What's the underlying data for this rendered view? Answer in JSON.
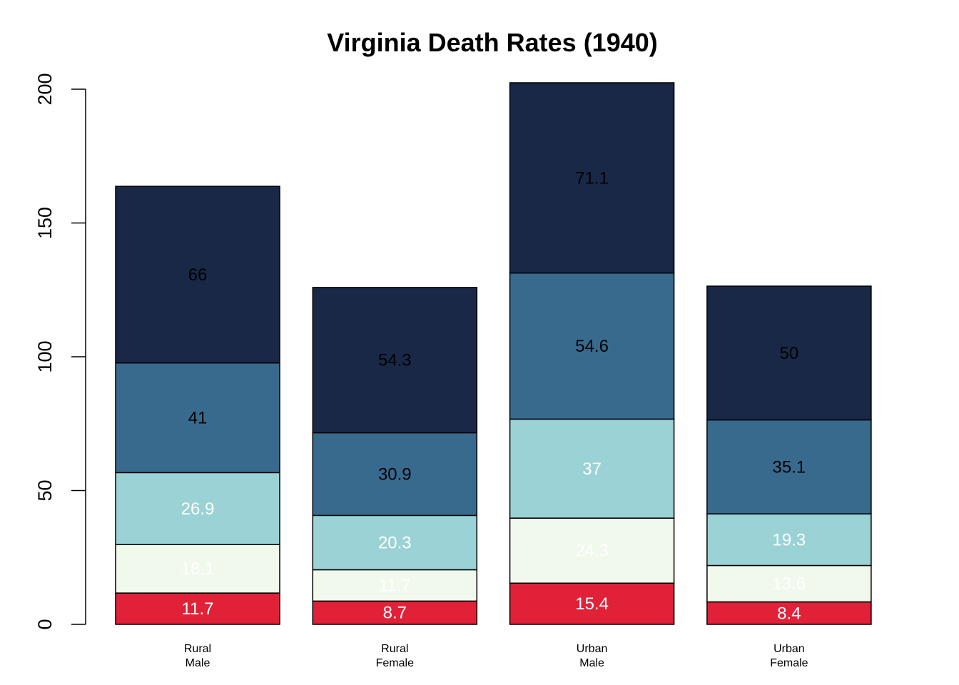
{
  "chart_data": {
    "type": "bar",
    "stacked": true,
    "title": "Virginia Death Rates (1940)",
    "xlabel": "",
    "ylabel": "",
    "ylim": [
      0,
      200
    ],
    "yticks": [
      0,
      50,
      100,
      150,
      200
    ],
    "categories": [
      [
        "Rural",
        "Male"
      ],
      [
        "Rural",
        "Female"
      ],
      [
        "Urban",
        "Male"
      ],
      [
        "Urban",
        "Female"
      ]
    ],
    "series": [
      {
        "values": [
          11.7,
          8.7,
          15.4,
          8.4
        ],
        "color": "#E02138",
        "label_color": "#FFFFFF"
      },
      {
        "values": [
          18.1,
          11.7,
          24.3,
          13.6
        ],
        "color": "#F1F8EC",
        "label_color": "#FFFFFF"
      },
      {
        "values": [
          26.9,
          20.3,
          37,
          19.3
        ],
        "color": "#9AD2D5",
        "label_color": "#FFFFFF"
      },
      {
        "values": [
          41,
          30.9,
          54.6,
          35.1
        ],
        "color": "#386A8E",
        "label_color": "#000000"
      },
      {
        "values": [
          66,
          54.3,
          71.1,
          50
        ],
        "color": "#1A2847",
        "label_color": "#000000"
      }
    ],
    "grid": false,
    "legend": "none"
  }
}
